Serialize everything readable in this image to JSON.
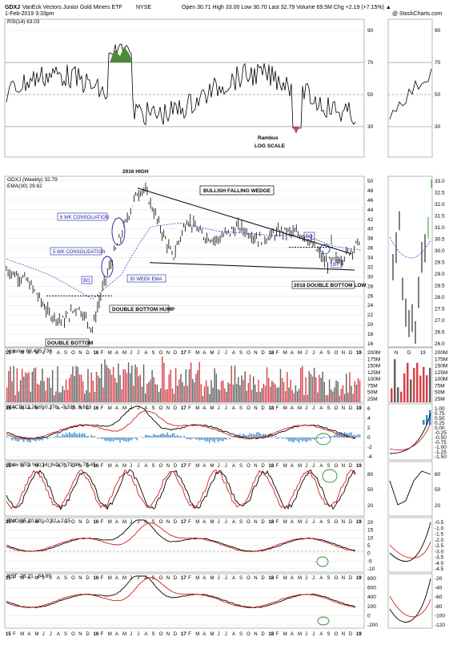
{
  "header": {
    "symbol": "GDXJ",
    "name": "VanEck Vectors Junior Gold Miners ETF",
    "exchange": "NYSE",
    "date": "1-Feb-2019 3:33pm",
    "quote": "Open 30.71  High 33.00  Low 30.70  Last 32.79  Volume 69.5M  Chg +2.19 (+7.15%) ▲",
    "credit": "@ StockCharts.com"
  },
  "rsi": {
    "title": "RSI(14) 63.03",
    "ticks": [
      "90",
      "70",
      "50",
      "30"
    ],
    "notes": [
      "Rambus",
      "LOG SCALE"
    ]
  },
  "price": {
    "title": "GDXJ (Weekly) 32.79",
    "ema_label": "EMA(30) 29.62",
    "ticks": [
      "50",
      "48",
      "46",
      "44",
      "42",
      "40",
      "38",
      "36",
      "34",
      "32",
      "30",
      "28",
      "26",
      "24",
      "22",
      "20",
      "18",
      "16"
    ],
    "right_ticks": [
      "33.0",
      "32.5",
      "32.0",
      "31.5",
      "31.0",
      "30.5",
      "30.0",
      "29.5",
      "29.0",
      "28.5",
      "28.0",
      "27.5",
      "27.0",
      "26.5",
      "26.0"
    ],
    "annotations": {
      "high_2016": "2016 HIGH",
      "wedge": "BULLISH FALLING WEDGE",
      "consol6": "6 WK CONSOLIATION",
      "consol5": "5 WK CONSOLIDATION",
      "bo1": "BO",
      "ema30": "30 WEEK EMA",
      "hump": "DOUBLE BOTTOM HUMP",
      "dbl": "DOUBLE BOTTOM",
      "dbl2018": "2018 DOUBLE BOTTOM LOW",
      "bo2": "BO",
      "bt": "BT"
    }
  },
  "volume": {
    "title": "Volume 69,495,736",
    "ticks": [
      "200M",
      "175M",
      "150M",
      "125M",
      "100M",
      "75M",
      "50M",
      "25M"
    ]
  },
  "macd": {
    "title": "MACD(12,26,9) 0.276, -0.336, 0.613",
    "ticks": [
      "6",
      "4",
      "2",
      "0",
      "-2",
      "-4"
    ],
    "right_ticks": [
      "1.00",
      "0.75",
      "0.50",
      "0.25",
      "0.00",
      "-0.25",
      "-0.50",
      "-0.75",
      "-1.00",
      "-1.25",
      "-1.50"
    ]
  },
  "sto": {
    "title": "Slow STO %K(14) %D(3) 79.96, 78.45",
    "ticks": [
      "80",
      "50",
      "20"
    ]
  },
  "pmo": {
    "title": "PMO(35,20,10) -0.32, -2.15",
    "ticks": [
      "20",
      "15",
      "10",
      "5",
      "0",
      "-5",
      "-10"
    ],
    "right_ticks": [
      "-0.5",
      "-1.0",
      "-1.5",
      "-2.0",
      "-2.5",
      "-3.0",
      "-3.5",
      "-4.0",
      "-4.5"
    ]
  },
  "kst": {
    "title": "KST -26.21, -84.89",
    "ticks": [
      "800",
      "600",
      "400",
      "200",
      "0",
      "-200"
    ],
    "right_ticks": [
      "-20",
      "-40",
      "-60",
      "-80",
      "-100",
      "-120"
    ]
  },
  "xaxis": {
    "years": [
      "15",
      "16",
      "17",
      "18",
      "19"
    ],
    "months": [
      "F",
      "M",
      "A",
      "M",
      "J",
      "J",
      "A",
      "S",
      "O",
      "N",
      "D"
    ],
    "right_labels": [
      "N",
      "D",
      "19"
    ]
  },
  "chart_data": {
    "type": "line",
    "title": "GDXJ (Weekly) 32.79",
    "ylabel": "",
    "yscale": "log",
    "ylim": [
      15,
      50
    ],
    "x_range": [
      "2015-01",
      "2019-02"
    ],
    "series": [
      {
        "name": "GDXJ (Weekly)",
        "x": [
          "2015-01",
          "2015-04",
          "2015-07",
          "2015-09",
          "2015-11",
          "2016-01",
          "2016-03",
          "2016-05",
          "2016-07",
          "2016-08",
          "2016-10",
          "2016-12",
          "2017-02",
          "2017-04",
          "2017-06",
          "2017-09",
          "2017-12",
          "2018-03",
          "2018-06",
          "2018-09",
          "2018-11",
          "2019-01",
          "2019-02"
        ],
        "values": [
          26,
          24,
          19,
          18,
          20,
          17,
          25,
          33,
          44,
          46,
          36,
          28,
          37,
          33,
          32,
          35,
          32,
          34,
          33,
          27,
          28,
          30.5,
          32.79
        ]
      },
      {
        "name": "EMA(30)",
        "x": [
          "2015-01",
          "2015-07",
          "2016-01",
          "2016-05",
          "2016-09",
          "2017-01",
          "2017-06",
          "2018-01",
          "2018-06",
          "2018-10",
          "2019-02"
        ],
        "values": [
          28,
          25,
          21,
          25,
          35,
          36,
          34,
          33,
          33,
          30.5,
          29.62
        ]
      }
    ],
    "rsi": {
      "name": "RSI(14)",
      "last": 63.03,
      "ylim": [
        10,
        100
      ]
    },
    "volume": {
      "name": "Volume",
      "last": 69495736,
      "ylim": [
        0,
        200000000
      ]
    },
    "macd": {
      "name": "MACD(12,26,9)",
      "macd": 0.276,
      "signal": -0.336,
      "histogram": 0.613
    },
    "slow_sto": {
      "name": "Slow STO %K(14) %D(3)",
      "k": 79.96,
      "d": 78.45
    },
    "pmo": {
      "name": "PMO(35,20,10)",
      "pmo": -0.32,
      "signal": -2.15
    },
    "kst": {
      "name": "KST",
      "kst": -26.21,
      "signal": -84.89
    }
  }
}
